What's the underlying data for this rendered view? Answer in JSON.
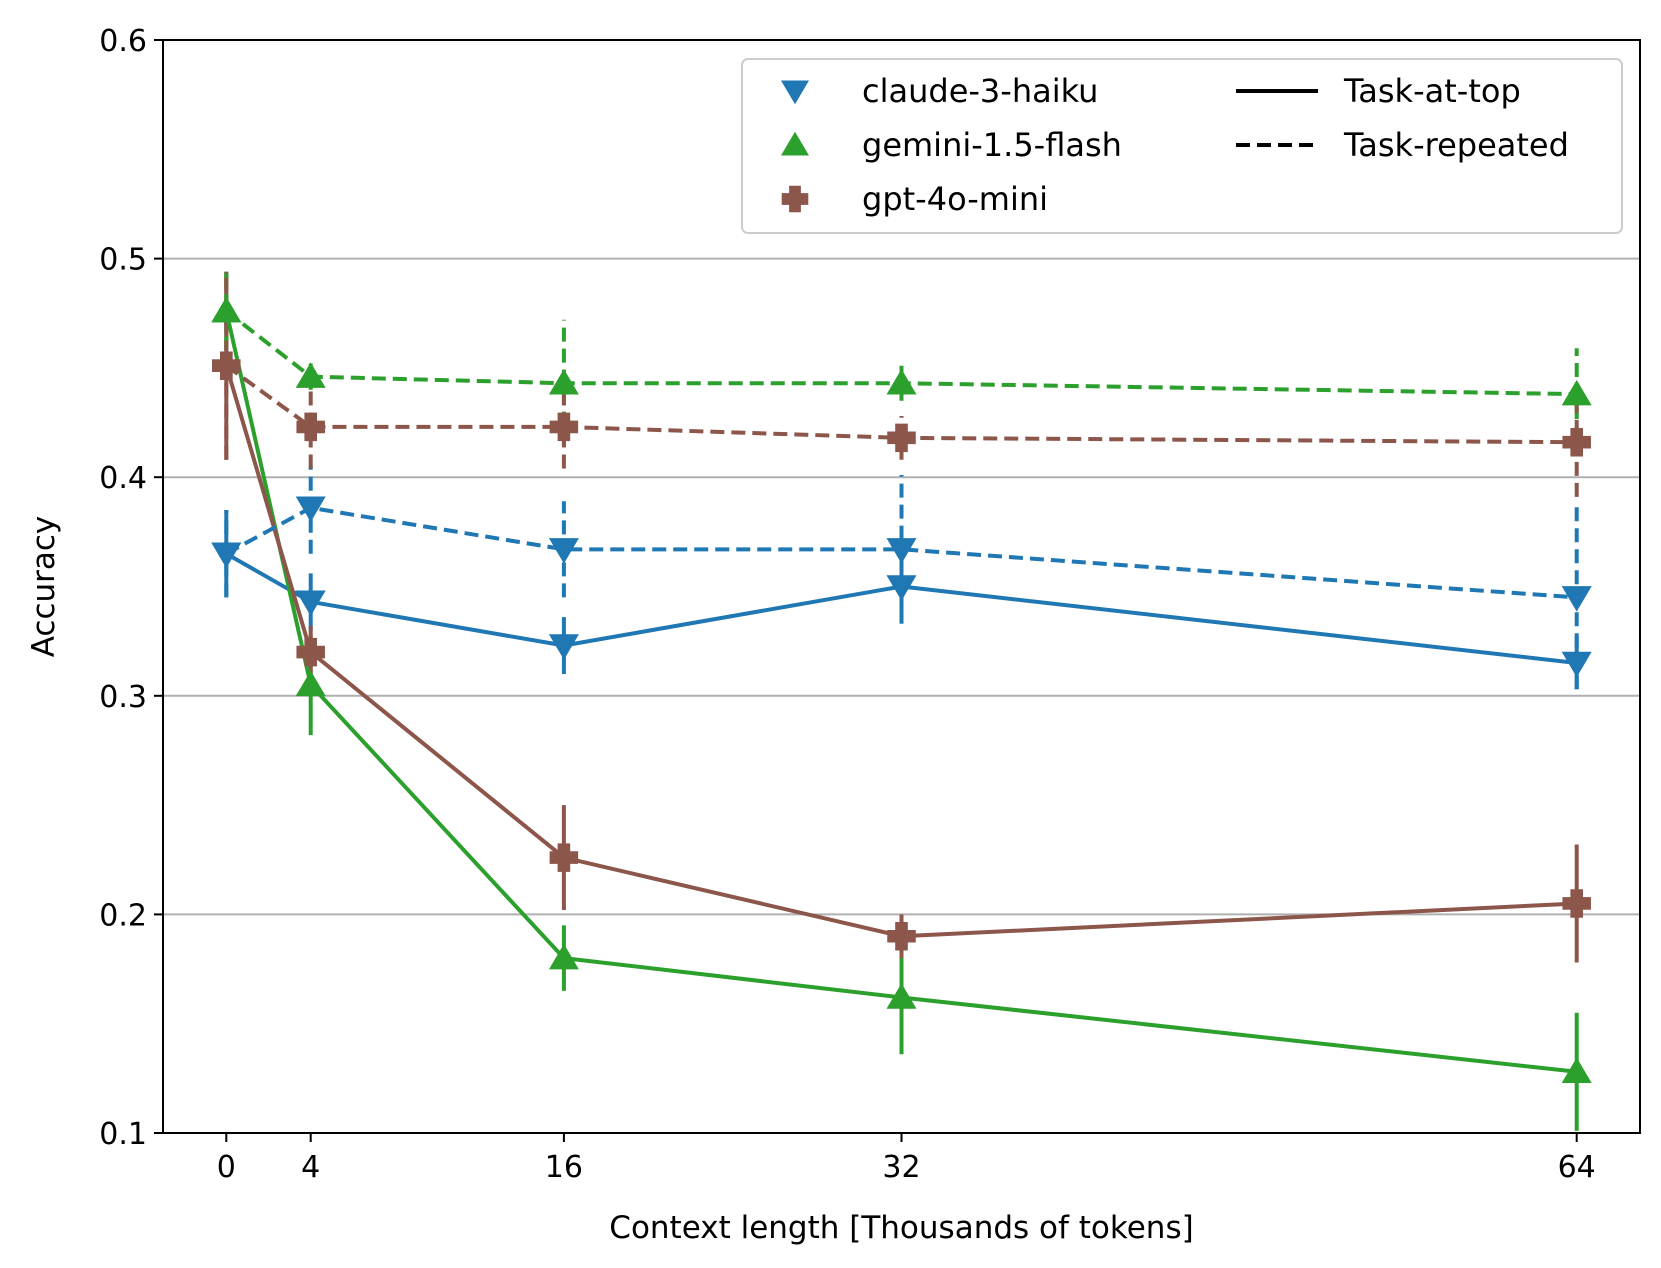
{
  "chart_data": {
    "type": "line",
    "title": "",
    "xlabel": "Context length [Thousands of tokens]",
    "ylabel": "Accuracy",
    "xlim": [
      -3,
      67
    ],
    "ylim": [
      0.1,
      0.6
    ],
    "xticks": [
      0,
      4,
      16,
      32,
      64
    ],
    "xtick_labels": [
      "0",
      "4",
      "16",
      "32",
      "64"
    ],
    "yticks": [
      0.1,
      0.2,
      0.3,
      0.4,
      0.5,
      0.6
    ],
    "ytick_labels": [
      "0.1",
      "0.2",
      "0.3",
      "0.4",
      "0.5",
      "0.6"
    ],
    "grid": "horizontal",
    "legend_position": "top-right",
    "x": [
      0,
      4,
      16,
      32,
      64
    ],
    "models": [
      {
        "name": "claude-3-haiku",
        "color": "#1f77b4",
        "marker": "triangle-down"
      },
      {
        "name": "gemini-1.5-flash",
        "color": "#2ca02c",
        "marker": "triangle-up"
      },
      {
        "name": "gpt-4o-mini",
        "color": "#8c564b",
        "marker": "plus"
      }
    ],
    "conditions": [
      {
        "name": "Task-at-top",
        "style": "solid"
      },
      {
        "name": "Task-repeated",
        "style": "dashed"
      }
    ],
    "series": [
      {
        "model": "claude-3-haiku",
        "condition": "Task-at-top",
        "values": [
          0.365,
          0.343,
          0.323,
          0.35,
          0.315
        ],
        "err_low": [
          0.345,
          0.33,
          0.31,
          0.333,
          0.303
        ],
        "err_high": [
          0.385,
          0.356,
          0.336,
          0.367,
          0.327
        ]
      },
      {
        "model": "gemini-1.5-flash",
        "condition": "Task-at-top",
        "values": [
          0.476,
          0.305,
          0.18,
          0.162,
          0.128
        ],
        "err_low": [
          0.458,
          0.282,
          0.165,
          0.136,
          0.101
        ],
        "err_high": [
          0.494,
          0.328,
          0.195,
          0.188,
          0.155
        ]
      },
      {
        "model": "gpt-4o-mini",
        "condition": "Task-at-top",
        "values": [
          0.451,
          0.32,
          0.226,
          0.19,
          0.205
        ],
        "err_low": [
          0.408,
          0.308,
          0.202,
          0.18,
          0.178
        ],
        "err_high": [
          0.494,
          0.332,
          0.25,
          0.2,
          0.232
        ]
      },
      {
        "model": "claude-3-haiku",
        "condition": "Task-repeated",
        "values": [
          0.365,
          0.386,
          0.367,
          0.367,
          0.345
        ],
        "err_low": [
          0.345,
          0.365,
          0.345,
          0.333,
          0.303
        ],
        "err_high": [
          0.385,
          0.405,
          0.389,
          0.401,
          0.387
        ]
      },
      {
        "model": "gemini-1.5-flash",
        "condition": "Task-repeated",
        "values": [
          0.476,
          0.446,
          0.443,
          0.443,
          0.438
        ],
        "err_low": [
          0.458,
          0.44,
          0.414,
          0.435,
          0.417
        ],
        "err_high": [
          0.494,
          0.452,
          0.472,
          0.451,
          0.459
        ]
      },
      {
        "model": "gpt-4o-mini",
        "condition": "Task-repeated",
        "values": [
          0.451,
          0.423,
          0.423,
          0.418,
          0.416
        ],
        "err_low": [
          0.408,
          0.404,
          0.404,
          0.408,
          0.391
        ],
        "err_high": [
          0.494,
          0.442,
          0.442,
          0.428,
          0.441
        ]
      }
    ]
  }
}
